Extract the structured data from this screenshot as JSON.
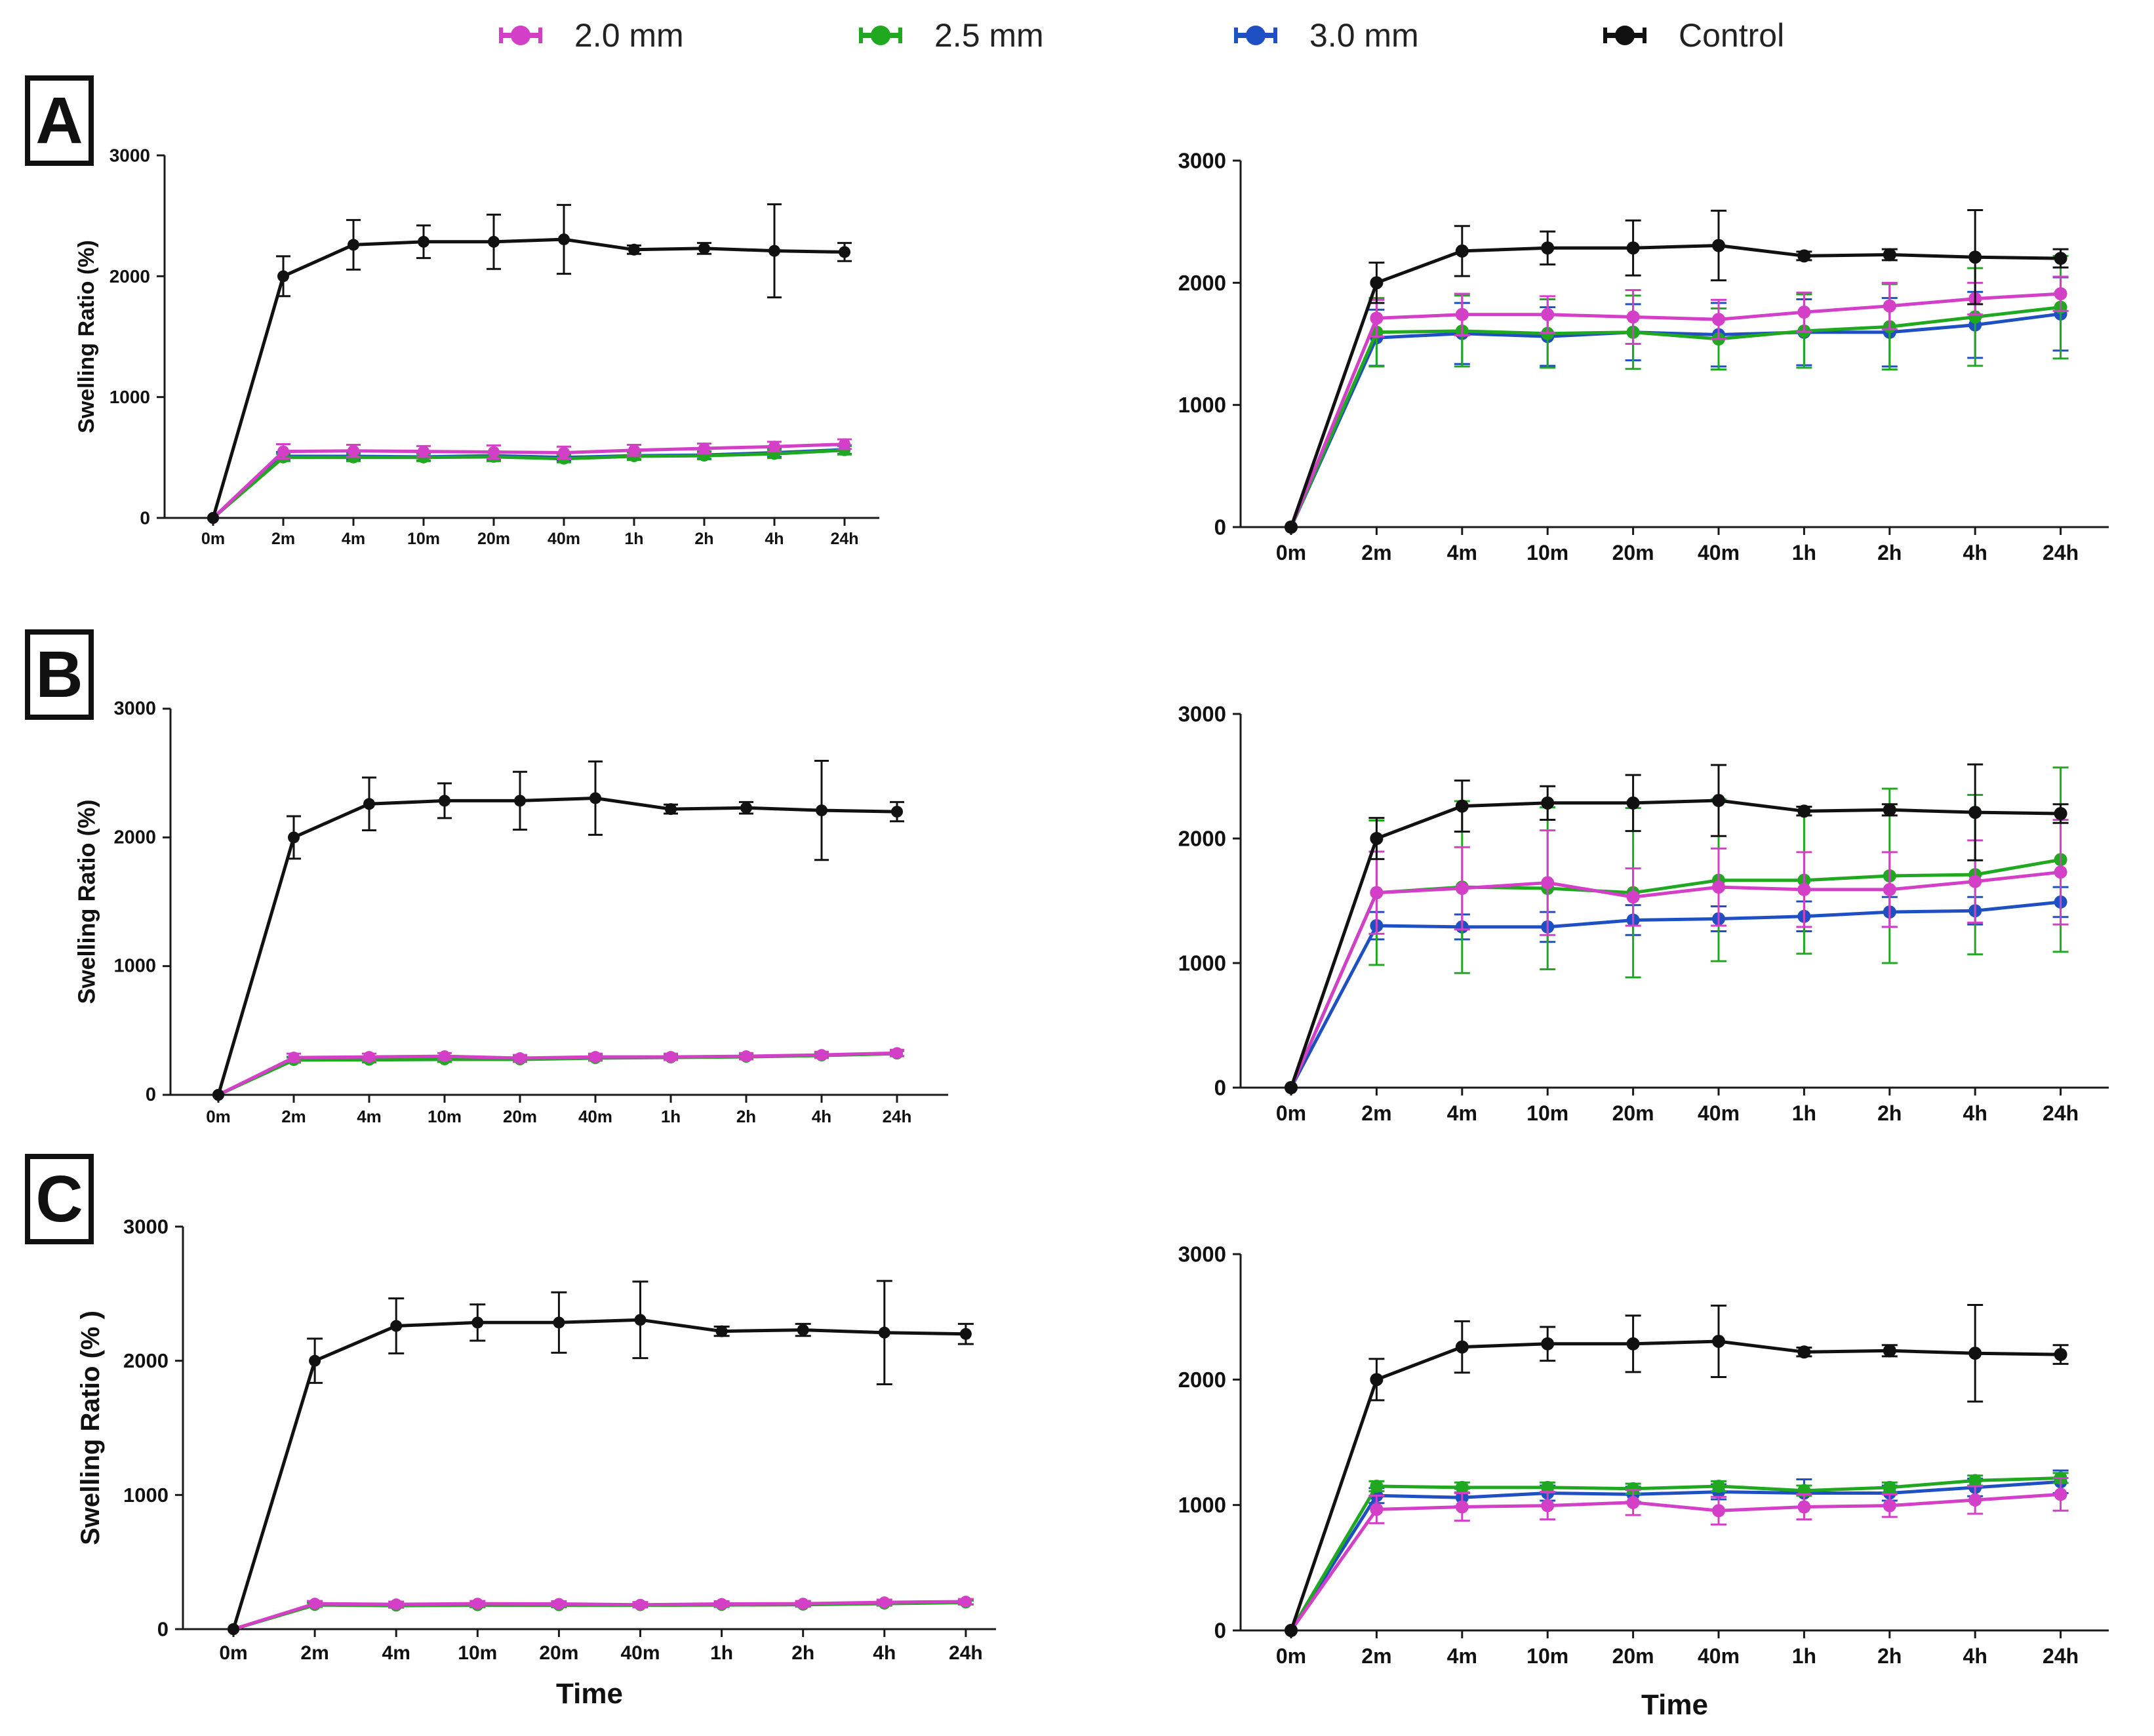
{
  "legend": {
    "items": [
      {
        "label": "2.0 mm",
        "color": "#d43fc8"
      },
      {
        "label": "2.5 mm",
        "color": "#20a820"
      },
      {
        "label": "3.0 mm",
        "color": "#1e50c4"
      },
      {
        "label": "Control",
        "color": "#111111"
      }
    ]
  },
  "panels": [
    {
      "label": "A"
    },
    {
      "label": "B"
    },
    {
      "label": "C"
    }
  ],
  "chart_data": [
    {
      "panel": "A",
      "type": "line",
      "title": "",
      "xlabel": "",
      "ylabel": "Swelling Ratio (%)",
      "categories": [
        "0m",
        "2m",
        "4m",
        "10m",
        "20m",
        "40m",
        "1h",
        "2h",
        "4h",
        "24h"
      ],
      "ylim": [
        0,
        3000
      ],
      "yticks": [
        0,
        1000,
        2000,
        3000
      ],
      "grid": false,
      "series": [
        {
          "name": "3.0 mm",
          "values": [
            0,
            510,
            510,
            505,
            515,
            500,
            515,
            520,
            540,
            565
          ],
          "errors": [
            0,
            35,
            30,
            30,
            35,
            30,
            30,
            30,
            35,
            35
          ]
        },
        {
          "name": "2.5 mm",
          "values": [
            0,
            500,
            500,
            500,
            505,
            490,
            510,
            515,
            530,
            560
          ],
          "errors": [
            0,
            30,
            30,
            30,
            35,
            30,
            30,
            30,
            35,
            35
          ]
        },
        {
          "name": "2.0 mm",
          "values": [
            0,
            550,
            555,
            550,
            545,
            540,
            560,
            575,
            590,
            610
          ],
          "errors": [
            0,
            60,
            50,
            45,
            55,
            50,
            45,
            40,
            40,
            40
          ]
        },
        {
          "name": "Control",
          "values": [
            0,
            2000,
            2260,
            2285,
            2285,
            2305,
            2220,
            2230,
            2210,
            2200
          ],
          "errors": [
            0,
            165,
            205,
            135,
            225,
            285,
            35,
            45,
            385,
            75
          ]
        }
      ]
    },
    {
      "panel": "A",
      "type": "line",
      "title": "",
      "xlabel": "",
      "ylabel": "",
      "categories": [
        "0m",
        "2m",
        "4m",
        "10m",
        "20m",
        "40m",
        "1h",
        "2h",
        "4h",
        "24h"
      ],
      "ylim": [
        0,
        3000
      ],
      "yticks": [
        0,
        1000,
        2000,
        3000
      ],
      "grid": false,
      "series": [
        {
          "name": "3.0 mm",
          "values": [
            0,
            1550,
            1585,
            1560,
            1595,
            1575,
            1595,
            1595,
            1655,
            1745
          ],
          "errors": [
            0,
            230,
            250,
            240,
            230,
            260,
            270,
            280,
            270,
            300
          ]
        },
        {
          "name": "2.5 mm",
          "values": [
            0,
            1595,
            1605,
            1585,
            1595,
            1540,
            1605,
            1640,
            1720,
            1800
          ],
          "errors": [
            0,
            280,
            290,
            280,
            300,
            250,
            300,
            350,
            400,
            420
          ]
        },
        {
          "name": "2.0 mm",
          "values": [
            0,
            1710,
            1740,
            1740,
            1720,
            1700,
            1760,
            1810,
            1870,
            1910
          ],
          "errors": [
            0,
            150,
            170,
            150,
            220,
            160,
            160,
            190,
            130,
            140
          ]
        },
        {
          "name": "Control",
          "values": [
            0,
            2000,
            2260,
            2285,
            2285,
            2305,
            2220,
            2230,
            2210,
            2200
          ],
          "errors": [
            0,
            165,
            205,
            135,
            225,
            285,
            35,
            45,
            385,
            75
          ]
        }
      ]
    },
    {
      "panel": "B",
      "type": "line",
      "title": "",
      "xlabel": "",
      "ylabel": "Swelling Ratio (%)",
      "categories": [
        "0m",
        "2m",
        "4m",
        "10m",
        "20m",
        "40m",
        "1h",
        "2h",
        "4h",
        "24h"
      ],
      "ylim": [
        0,
        3000
      ],
      "yticks": [
        0,
        1000,
        2000,
        3000
      ],
      "grid": false,
      "series": [
        {
          "name": "3.0 mm",
          "values": [
            0,
            275,
            278,
            278,
            280,
            290,
            292,
            298,
            308,
            322
          ],
          "errors": [
            0,
            20,
            20,
            20,
            20,
            20,
            20,
            20,
            20,
            20
          ]
        },
        {
          "name": "2.5 mm",
          "values": [
            0,
            270,
            272,
            275,
            275,
            285,
            290,
            295,
            305,
            320
          ],
          "errors": [
            0,
            20,
            20,
            20,
            20,
            20,
            20,
            20,
            20,
            20
          ]
        },
        {
          "name": "2.0 mm",
          "values": [
            0,
            290,
            295,
            300,
            285,
            295,
            295,
            300,
            310,
            325
          ],
          "errors": [
            0,
            30,
            25,
            25,
            25,
            25,
            25,
            25,
            25,
            25
          ]
        },
        {
          "name": "Control",
          "values": [
            0,
            2000,
            2260,
            2285,
            2285,
            2305,
            2220,
            2230,
            2210,
            2200
          ],
          "errors": [
            0,
            165,
            205,
            135,
            225,
            285,
            35,
            45,
            385,
            75
          ]
        }
      ]
    },
    {
      "panel": "B",
      "type": "line",
      "title": "",
      "xlabel": "",
      "ylabel": "",
      "categories": [
        "0m",
        "2m",
        "4m",
        "10m",
        "20m",
        "40m",
        "1h",
        "2h",
        "4h",
        "24h"
      ],
      "ylim": [
        0,
        3000
      ],
      "yticks": [
        0,
        1000,
        2000,
        3000
      ],
      "grid": false,
      "series": [
        {
          "name": "3.0 mm",
          "values": [
            0,
            1300,
            1290,
            1290,
            1345,
            1355,
            1375,
            1410,
            1420,
            1490
          ],
          "errors": [
            0,
            110,
            100,
            120,
            120,
            100,
            120,
            120,
            110,
            120
          ]
        },
        {
          "name": "2.5 mm",
          "values": [
            0,
            1565,
            1610,
            1600,
            1565,
            1665,
            1665,
            1700,
            1710,
            1830
          ],
          "errors": [
            0,
            580,
            690,
            650,
            680,
            650,
            590,
            700,
            640,
            740
          ]
        },
        {
          "name": "2.0 mm",
          "values": [
            0,
            1565,
            1600,
            1645,
            1530,
            1610,
            1590,
            1590,
            1655,
            1730
          ],
          "errors": [
            0,
            330,
            330,
            420,
            230,
            310,
            300,
            300,
            330,
            420
          ]
        },
        {
          "name": "Control",
          "values": [
            0,
            2000,
            2260,
            2285,
            2285,
            2305,
            2220,
            2230,
            2210,
            2200
          ],
          "errors": [
            0,
            165,
            205,
            135,
            225,
            285,
            35,
            45,
            385,
            75
          ]
        }
      ]
    },
    {
      "panel": "C",
      "type": "line",
      "title": "",
      "xlabel": "Time",
      "ylabel": "Swelling Ratio (% )",
      "categories": [
        "0m",
        "2m",
        "4m",
        "10m",
        "20m",
        "40m",
        "1h",
        "2h",
        "4h",
        "24h"
      ],
      "ylim": [
        0,
        3000
      ],
      "yticks": [
        0,
        1000,
        2000,
        3000
      ],
      "grid": false,
      "series": [
        {
          "name": "3.0 mm",
          "values": [
            0,
            182,
            178,
            180,
            180,
            180,
            182,
            184,
            192,
            200
          ],
          "errors": [
            0,
            15,
            15,
            15,
            15,
            15,
            15,
            15,
            15,
            15
          ]
        },
        {
          "name": "2.5 mm",
          "values": [
            0,
            180,
            175,
            178,
            178,
            178,
            180,
            182,
            190,
            198
          ],
          "errors": [
            0,
            15,
            15,
            15,
            15,
            15,
            15,
            15,
            15,
            15
          ]
        },
        {
          "name": "2.0 mm",
          "values": [
            0,
            190,
            185,
            190,
            188,
            182,
            188,
            190,
            200,
            205
          ],
          "errors": [
            0,
            20,
            20,
            20,
            20,
            20,
            20,
            20,
            20,
            20
          ]
        },
        {
          "name": "Control",
          "values": [
            0,
            2000,
            2260,
            2285,
            2285,
            2305,
            2220,
            2230,
            2210,
            2200
          ],
          "errors": [
            0,
            165,
            205,
            135,
            225,
            285,
            35,
            45,
            385,
            75
          ]
        }
      ]
    },
    {
      "panel": "C",
      "type": "line",
      "title": "",
      "xlabel": "Time",
      "ylabel": "",
      "categories": [
        "0m",
        "2m",
        "4m",
        "10m",
        "20m",
        "40m",
        "1h",
        "2h",
        "4h",
        "24h"
      ],
      "ylim": [
        0,
        3000
      ],
      "yticks": [
        0,
        1000,
        2000,
        3000
      ],
      "grid": false,
      "series": [
        {
          "name": "3.0 mm",
          "values": [
            0,
            1075,
            1060,
            1095,
            1085,
            1105,
            1095,
            1095,
            1140,
            1185
          ],
          "errors": [
            0,
            60,
            70,
            60,
            60,
            60,
            110,
            60,
            70,
            90
          ]
        },
        {
          "name": "2.5 mm",
          "values": [
            0,
            1150,
            1140,
            1140,
            1130,
            1150,
            1115,
            1140,
            1195,
            1215
          ],
          "errors": [
            0,
            40,
            40,
            40,
            40,
            40,
            40,
            40,
            40,
            40
          ]
        },
        {
          "name": "2.0 mm",
          "values": [
            0,
            965,
            985,
            995,
            1020,
            955,
            985,
            995,
            1040,
            1085
          ],
          "errors": [
            0,
            110,
            110,
            110,
            100,
            110,
            100,
            90,
            110,
            130
          ]
        },
        {
          "name": "Control",
          "values": [
            0,
            2000,
            2260,
            2285,
            2285,
            2305,
            2220,
            2230,
            2210,
            2200
          ],
          "errors": [
            0,
            165,
            205,
            135,
            225,
            285,
            35,
            45,
            385,
            75
          ]
        }
      ]
    }
  ]
}
